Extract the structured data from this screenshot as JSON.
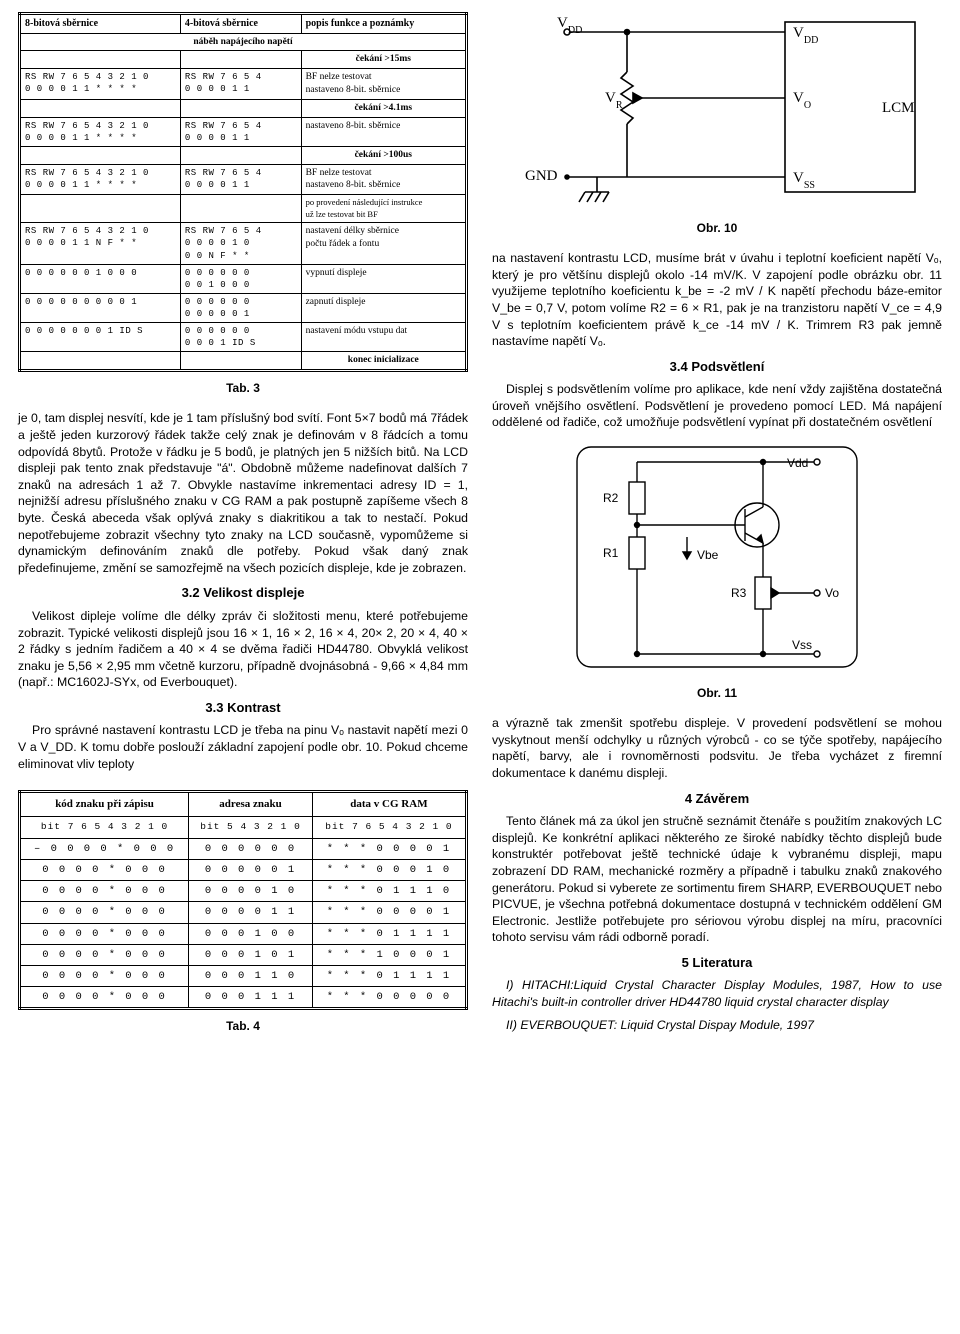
{
  "tab3": {
    "headers": [
      "8-bitová sběrnice",
      "4-bitová sběrnice",
      "popis funkce a poznámky"
    ],
    "rows": [
      {
        "col1": "",
        "col2": "",
        "col3": "náběh napájecího napětí",
        "kind": "centered"
      },
      {
        "col1": "",
        "col2": "",
        "col3": "čekání >15ms",
        "kind": "note"
      },
      {
        "col1": "RS RW 7 6 5 4 3 2 1 0\n0  0  0 0 1 1 * * * *",
        "col2": "RS RW 7 6 5 4\n0  0  0 0 1 1",
        "col3": "BF nelze testovat\nnastaveno 8-bit. sběrnice"
      },
      {
        "col1": "",
        "col2": "",
        "col3": "čekání >4.1ms",
        "kind": "note"
      },
      {
        "col1": "RS RW 7 6 5 4 3 2 1 0\n0  0  0 0 1 1 * * * *",
        "col2": "RS RW 7 6 5 4\n0  0  0 0 1 1",
        "col3": "nastaveno 8-bit. sběrnice"
      },
      {
        "col1": "",
        "col2": "",
        "col3": "čekání >100us",
        "kind": "note"
      },
      {
        "col1": "RS RW 7 6 5 4 3 2 1 0\n0  0  0 0 1 1 * * * *",
        "col2": "RS RW 7 6 5 4\n0  0  0 0 1 1",
        "col3": "BF nelze testovat\nnastaveno 8-bit. sběrnice"
      },
      {
        "col1": "",
        "col2": "",
        "col3": "po provedení následující instrukce\nuž lze testovat bit BF",
        "kind": "small"
      },
      {
        "col1": "RS RW 7 6 5 4 3 2 1 0\n0  0  0 0 1 1 N F * *",
        "col2": "RS RW 7 6 5 4\n0  0  0 0 1 0\n0  0  N F * *",
        "col3": "nastavení délky sběrnice\npočtu řádek a fontu"
      },
      {
        "col1": "0  0  0 0 0 0 1 0 0 0",
        "col2": "0  0  0 0 0 0\n0  0  1 0 0 0",
        "col3": "vypnutí displeje"
      },
      {
        "col1": "0  0  0 0 0 0 0 0 0 1",
        "col2": "0  0  0 0 0 0\n0  0  0 0 0 1",
        "col3": "zapnutí displeje"
      },
      {
        "col1": "0  0  0 0 0 0 0 1 ID S",
        "col2": "0  0  0 0 0 0\n0  0  0 1 ID S",
        "col3": "nastavení módu vstupu dat"
      },
      {
        "col1": "",
        "col2": "",
        "col3": "konec inicializace",
        "kind": "note"
      }
    ],
    "caption": "Tab. 3"
  },
  "paragraphs": {
    "p1": "je 0, tam displej nesvítí, kde je 1 tam příslušný bod svítí. Font 5×7 bodů má 7řádek a ještě jeden kurzorový řádek takže celý znak je definovám v 8 řádcích a tomu odpovídá 8bytů. Protože v řádku je 5 bodů, je platných jen 5 nižších bitů. Na LCD displeji pak tento znak představuje \"á\". Obdobně můžeme nadefinovat dalších 7 znaků na adresách 1 až 7. Obvykle nastavíme inkrementaci adresy ID = 1, nejnižší adresu příslušného znaku v CG RAM a pak postupně zapíšeme všech 8 byte. Česká abeceda však oplývá znaky s diakritikou a tak to nestačí. Pokud nepotřebujeme zobrazit všechny tyto znaky na LCD současně, vypomůžeme si dynamickým definováním znaků dle potřeby. Pokud však daný znak předefinujeme, změní se samozřejmě na všech pozicích displeje, kde je zobrazen.",
    "h32": "3.2 Velikost displeje",
    "p2": "Velikost dipleje volíme dle délky zpráv či složitosti menu, které potřebujeme zobrazit. Typické velikosti displejů jsou 16 × 1, 16 × 2, 16 × 4, 20× 2, 20 × 4, 40 × 2 řádky s jedním řadičem a 40 × 4 se dvěma řadiči HD44780. Obvyklá velikost znaku je 5,56 × 2,95 mm včetně kurzoru, případně dvojnásobná - 9,66 × 4,84 mm (např.: MC1602J-SYx, od Everbouquet).",
    "h33": "3.3 Kontrast",
    "p3": "Pro správné nastavení kontrastu LCD je třeba na pinu Vₒ nastavit napětí mezi 0 V a V_DD. K tomu dobře poslouží základní zapojení podle obr. 10. Pokud chceme eliminovat vliv teploty",
    "obr10": "Obr. 10",
    "pR1": "na nastavení kontrastu LCD, musíme brát v úvahu i teplotní koeficient napětí Vₒ, který je pro většínu displejů okolo -14 mV/K. V zapojení podle obrázku obr. 11 využijeme teplotního koeficientu k_be = -2 mV / K napětí přechodu báze-emitor V_be = 0,7 V, potom volíme R2 = 6 × R1, pak je na tranzistoru napětí V_ce = 4,9 V s teplotním koeficientem právě k_ce -14 mV / K. Trimrem R3 pak jemně nastavíme napětí Vₒ.",
    "h34": "3.4 Podsvětlení",
    "pR2": "Displej s podsvětlením volíme pro aplikace, kde není vždy zajištěna dostatečná úroveň vnějšího osvětlení. Podsvětlení je provedeno pomocí LED. Má napájení oddělené od řadiče, což umožňuje podsvětlení vypínat při dostatečném osvětlení",
    "obr11": "Obr. 11",
    "pR3": "a výrazně tak zmenšit spotřebu displeje. V provedení podsvětlení se mohou vyskytnout menší odchylky u různých výrobců - co se týče spotřeby, napájecího napětí, barvy, ale i rovnoměrnosti podsvitu. Je třeba vycházet z firemní dokumentace k danému displeji.",
    "h4": "4 Závěrem",
    "pR4": "Tento článek má za úkol jen stručně seznámit čtenáře s použitím znakových LC displejů. Ke konkrétní aplikaci některého ze široké nabídky těchto displejů bude konstruktér potřebovat ještě technické údaje k vybranému displeji, mapu zobrazení DD RAM, mechanické rozměry a případně i tabulku znaků znakového generátoru. Pokud si vyberete ze sortimentu firem SHARP, EVERBOUQUET nebo PICVUE, je všechna potřebná dokumentace dostupná v technickém oddělení GM Electronic. Jestliže potřebujete pro sériovou výrobu displej na míru, pracovníci tohoto servisu vám rádi odborně poradí.",
    "h5": "5 Literatura",
    "pR5": "I) HITACHI:Liquid Crystal Character Display Modules, 1987, How to use Hitachi's built-in controller driver HD44780 liquid crystal character display",
    "pR6": "II) EVERBOUQUET: Liquid Crystal Dispay Module, 1997"
  },
  "tab4": {
    "headers": [
      "kód znaku při zápisu",
      "adresa znaku",
      "data v CG RAM"
    ],
    "subheaders": [
      "bit 7 6 5 4 3  2 1 0",
      "bit 5 4 3  2 1 0",
      "bit 7 6 5  4 3 2 1 0"
    ],
    "rows": [
      [
        "– 0 0 0 0 *  0 0 0",
        "0 0 0  0 0 0",
        "* * *  0 0 0 0 1"
      ],
      [
        "  0 0 0 0 *  0 0 0",
        "0 0 0  0 0 1",
        "* * *  0 0 0 1 0"
      ],
      [
        "  0 0 0 0 *  0 0 0",
        "0 0 0  0 1 0",
        "* * *  0 1 1 1 0"
      ],
      [
        "  0 0 0 0 *  0 0 0",
        "0 0 0  0 1 1",
        "* * *  0 0 0 0 1"
      ],
      [
        "  0 0 0 0 *  0 0 0",
        "0 0 0  1 0 0",
        "* * *  0 1 1 1 1"
      ],
      [
        "  0 0 0 0 *  0 0 0",
        "0 0 0  1 0 1",
        "* * *  1 0 0 0 1"
      ],
      [
        "  0 0 0 0 *  0 0 0",
        "0 0 0  1 1 0",
        "* * *  0 1 1 1 1"
      ],
      [
        "  0 0 0 0 *  0 0 0",
        "0 0 0  1 1 1",
        "* * *  0 0 0 0 0"
      ]
    ],
    "caption": "Tab. 4"
  },
  "circuit10": {
    "labels": {
      "vdd1": "V_DD",
      "vdd2": "V_DD",
      "vr": "V_R",
      "vo": "V_O",
      "gnd": "GND",
      "vss": "V_SS",
      "lcm": "LCM"
    },
    "stroke": "#000000",
    "stroke_width": 1.6
  },
  "circuit11": {
    "labels": {
      "vdd": "Vdd",
      "r2": "R2",
      "r1": "R1",
      "vbe": "Vbe",
      "r3": "R3",
      "vo": "Vo",
      "vss": "Vss"
    },
    "stroke": "#000000",
    "stroke_width": 1.6
  }
}
